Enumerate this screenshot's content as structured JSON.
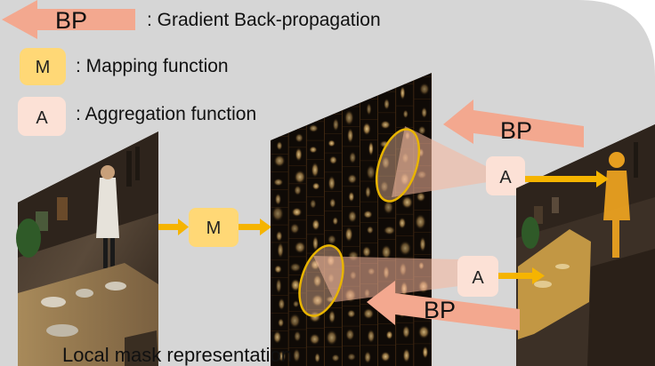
{
  "legend": {
    "bp_label": "BP",
    "bp_desc": ": Gradient Back-propagation",
    "mapping_label": "M",
    "mapping_desc": ": Mapping function",
    "aggregation_label": "A",
    "aggregation_desc": ": Aggregation function"
  },
  "flow": {
    "mapping_box": "M",
    "aggregation_top": "A",
    "aggregation_bottom": "A",
    "bp_top": "BP",
    "bp_bottom": "BP"
  },
  "caption": "Local mask representation",
  "colors": {
    "panel": "#d6d6d6",
    "bp_arrow": "#f3a88f",
    "mapping_box": "#ffd876",
    "aggregation_box": "#fce1d6",
    "flow_arrow": "#f5b400",
    "ellipse_stroke": "#e8b400",
    "feature_map": "#0f0a06"
  }
}
